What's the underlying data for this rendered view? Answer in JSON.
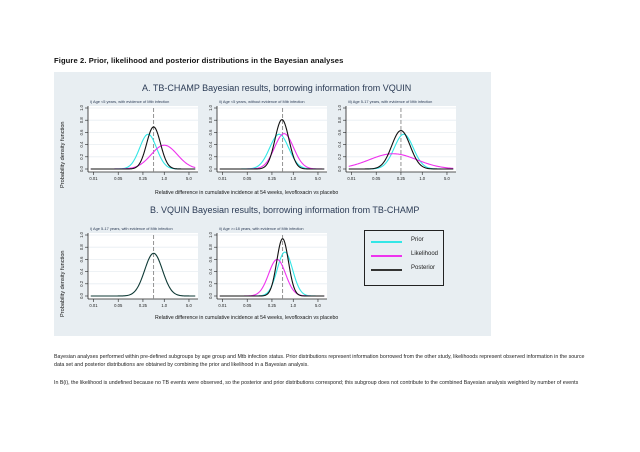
{
  "figure_title": "Figure 2.   Prior, likelihood and posterior distributions in the Bayesian analyses",
  "colors": {
    "prior": "#33e6e6",
    "likelihood": "#ee33ee",
    "posterior": "#111111",
    "posterior_B": "#0f3a36",
    "reference": "#888888",
    "panel_bg": "#e8eef2"
  },
  "legend": [
    {
      "key": "prior",
      "label": "Prior"
    },
    {
      "key": "likelihood",
      "label": "Likelihood"
    },
    {
      "key": "posterior",
      "label": "Posterior"
    }
  ],
  "notes": [
    "Bayesian analyses performed within pre-defined subgroups by age group and Mtb infection status. Prior distributions represent information borrowed from the other study, likelihoods represent observed information in the source data set and posterior distributions are obtained by combining the prior and likelihood in a Bayesian analysis.",
    "In B(i), the likelihood is undefined because no TB events were observed, so the posterior and prior distributions correspond; this subgroup does not contribute to the combined Bayesian analysis weighted by number of events"
  ],
  "chart_data": [
    {
      "type": "line",
      "section": "A. TB-CHAMP Bayesian results, borrowing information from VQUIN",
      "title": "i) Age <5 years, with evidence of Mtb infection",
      "xlabel": "Relative difference in cumulative incidence at 54 weeks, levofloxacin vs placebo",
      "ylabel": "Probability density function",
      "xscale": "log",
      "xticks": [
        "0.01",
        "0.05",
        "0.25",
        "1.0",
        "5.0"
      ],
      "xlim": [
        0.007,
        9
      ],
      "yticks": [
        "0.0",
        "0.2",
        "0.4",
        "0.6",
        "0.8",
        "1.0"
      ],
      "ylim": [
        0,
        1.0
      ],
      "reference_line_x": 0.5,
      "series": [
        {
          "name": "Prior",
          "peak_x": 0.35,
          "peak_y": 0.57,
          "log_sd": 0.55
        },
        {
          "name": "Likelihood",
          "peak_x": 1.0,
          "peak_y": 0.39,
          "log_sd": 0.85
        },
        {
          "name": "Posterior",
          "peak_x": 0.5,
          "peak_y": 0.69,
          "log_sd": 0.45
        }
      ]
    },
    {
      "type": "line",
      "section": "A. TB-CHAMP Bayesian results, borrowing information from VQUIN",
      "title": "ii) Age <5 years, without evidence of Mtb infection",
      "xscale": "log",
      "xticks": [
        "0.01",
        "0.05",
        "0.25",
        "1.0",
        "5.0"
      ],
      "xlim": [
        0.007,
        9
      ],
      "yticks": [
        "0.0",
        "0.2",
        "0.4",
        "0.6",
        "0.8",
        "1.0"
      ],
      "ylim": [
        0,
        1.0
      ],
      "reference_line_x": 0.5,
      "series": [
        {
          "name": "Prior",
          "peak_x": 0.4,
          "peak_y": 0.57,
          "log_sd": 0.62
        },
        {
          "name": "Likelihood",
          "peak_x": 0.55,
          "peak_y": 0.58,
          "log_sd": 0.62
        },
        {
          "name": "Posterior",
          "peak_x": 0.48,
          "peak_y": 0.81,
          "log_sd": 0.45
        }
      ]
    },
    {
      "type": "line",
      "section": "A. TB-CHAMP Bayesian results, borrowing information from VQUIN",
      "title": "iii) Age 5-17 years, with evidence of Mtb infection",
      "xscale": "log",
      "xticks": [
        "0.01",
        "0.05",
        "0.25",
        "1.0",
        "5.0"
      ],
      "xlim": [
        0.007,
        9
      ],
      "yticks": [
        "0.0",
        "0.2",
        "0.4",
        "0.6",
        "0.8",
        "1.0"
      ],
      "ylim": [
        0,
        1.0
      ],
      "reference_line_x": 0.25,
      "series": [
        {
          "name": "Prior",
          "peak_x": 0.3,
          "peak_y": 0.57,
          "log_sd": 0.62
        },
        {
          "name": "Likelihood",
          "peak_x": 0.15,
          "peak_y": 0.25,
          "log_sd": 1.55
        },
        {
          "name": "Posterior",
          "peak_x": 0.25,
          "peak_y": 0.63,
          "log_sd": 0.6
        }
      ]
    },
    {
      "type": "line",
      "section": "B. VQUIN Bayesian results, borrowing information from TB-CHAMP",
      "title": "i) Age 5-17 years, with evidence of Mtb infection",
      "xlabel": "Relative difference in cumulative incidence at 54 weeks, levofloxacin vs placebo",
      "ylabel": "Probability density function",
      "xscale": "log",
      "xticks": [
        "0.01",
        "0.05",
        "0.25",
        "1.0",
        "5.0"
      ],
      "xlim": [
        0.007,
        9
      ],
      "yticks": [
        "0.0",
        "0.2",
        "0.4",
        "0.6",
        "0.8",
        "1.0"
      ],
      "ylim": [
        0,
        1.0
      ],
      "reference_line_x": 0.5,
      "series": [
        {
          "name": "Posterior",
          "peak_x": 0.5,
          "peak_y": 0.7,
          "log_sd": 0.58
        }
      ]
    },
    {
      "type": "line",
      "section": "B. VQUIN Bayesian results, borrowing information from TB-CHAMP",
      "title": "ii) Age >=18 years, with evidence of Mtb infection",
      "xscale": "log",
      "xticks": [
        "0.01",
        "0.05",
        "0.25",
        "1.0",
        "5.0"
      ],
      "xlim": [
        0.007,
        9
      ],
      "yticks": [
        "0.0",
        "0.2",
        "0.4",
        "0.6",
        "0.8",
        "1.0"
      ],
      "ylim": [
        0,
        1.0
      ],
      "reference_line_x": 0.5,
      "series": [
        {
          "name": "Prior",
          "peak_x": 0.58,
          "peak_y": 0.72,
          "log_sd": 0.5
        },
        {
          "name": "Likelihood",
          "peak_x": 0.35,
          "peak_y": 0.6,
          "log_sd": 0.55
        },
        {
          "name": "Posterior",
          "peak_x": 0.5,
          "peak_y": 0.94,
          "log_sd": 0.38
        }
      ]
    }
  ]
}
